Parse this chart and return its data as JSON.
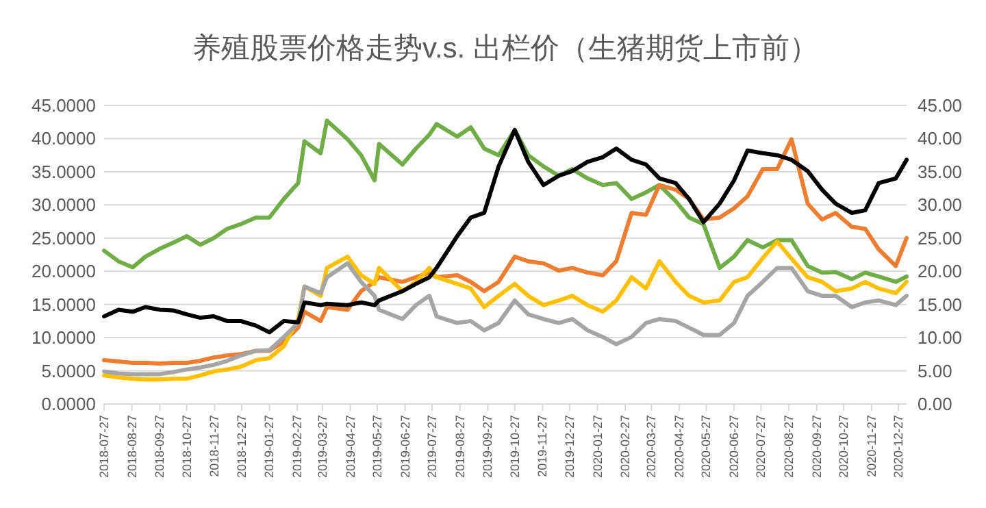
{
  "chart_data": {
    "type": "line",
    "title": "养殖股票价格走势v.s. 出栏价（生猪期货上市前）",
    "x": [
      "2018-07-27",
      "2018-08-12",
      "2018-08-28",
      "2018-09-11",
      "2018-09-27",
      "2018-10-12",
      "2018-10-27",
      "2018-11-11",
      "2018-11-26",
      "2018-12-11",
      "2018-12-26",
      "2019-01-12",
      "2019-01-27",
      "2019-02-12",
      "2019-02-28",
      "2019-03-07",
      "2019-03-25",
      "2019-04-01",
      "2019-04-24",
      "2019-05-09",
      "2019-05-24",
      "2019-05-29",
      "2019-06-24",
      "2019-07-09",
      "2019-07-24",
      "2019-08-01",
      "2019-08-24",
      "2019-09-08",
      "2019-09-23",
      "2019-10-09",
      "2019-10-27",
      "2019-11-11",
      "2019-11-28",
      "2019-12-15",
      "2019-12-30",
      "2020-01-16",
      "2020-02-02",
      "2020-02-17",
      "2020-03-05",
      "2020-03-21",
      "2020-04-05",
      "2020-04-23",
      "2020-05-08",
      "2020-05-24",
      "2020-06-11",
      "2020-06-27",
      "2020-07-12",
      "2020-07-29",
      "2020-08-14",
      "2020-08-30",
      "2020-09-17",
      "2020-10-03",
      "2020-10-18",
      "2020-11-05",
      "2020-11-20",
      "2020-12-05",
      "2020-12-24",
      "2021-01-05"
    ],
    "series": [
      {
        "color": "#70ad47",
        "values": [
          23.1,
          21.5,
          20.6,
          22.2,
          23.4,
          24.3,
          25.3,
          24.0,
          25.0,
          26.4,
          27.1,
          28.1,
          28.1,
          30.9,
          33.3,
          39.6,
          37.8,
          42.7,
          39.9,
          37.5,
          33.7,
          39.2,
          36.1,
          38.5,
          40.6,
          42.2,
          40.3,
          41.7,
          38.5,
          37.5,
          41.3,
          37.5,
          35.8,
          34.4,
          35.4,
          34.0,
          33.0,
          33.3,
          30.9,
          31.9,
          33.0,
          30.6,
          28.1,
          27.1,
          20.5,
          22.2,
          24.7,
          23.6,
          24.7,
          24.7,
          20.8,
          19.8,
          19.9,
          18.8,
          19.8,
          19.2,
          18.4,
          19.2
        ]
      },
      {
        "color": "#ed7d31",
        "values": [
          6.6,
          6.4,
          6.2,
          6.2,
          6.1,
          6.2,
          6.2,
          6.5,
          7.0,
          7.3,
          7.5,
          8.0,
          8.0,
          9.4,
          11.5,
          13.9,
          12.5,
          14.6,
          14.2,
          17.0,
          18.4,
          19.1,
          18.4,
          19.1,
          19.8,
          19.1,
          19.4,
          18.4,
          17.0,
          18.4,
          22.2,
          21.5,
          21.2,
          20.1,
          20.5,
          19.8,
          19.4,
          21.5,
          28.8,
          28.5,
          33.0,
          32.3,
          30.9,
          27.8,
          28.1,
          29.5,
          31.3,
          35.4,
          35.4,
          39.9,
          30.2,
          27.8,
          28.8,
          26.7,
          26.4,
          23.3,
          20.8,
          25.0
        ]
      },
      {
        "color": "#ffc000",
        "values": [
          4.3,
          4.0,
          3.8,
          3.7,
          3.7,
          3.8,
          3.8,
          4.3,
          4.9,
          5.2,
          5.6,
          6.6,
          6.9,
          8.7,
          12.8,
          17.7,
          16.3,
          20.5,
          22.2,
          19.4,
          18.1,
          20.5,
          17.0,
          18.4,
          20.5,
          19.1,
          18.1,
          17.4,
          14.6,
          16.3,
          18.1,
          16.3,
          14.9,
          15.6,
          16.3,
          14.9,
          13.9,
          15.6,
          19.1,
          17.4,
          21.5,
          18.4,
          16.3,
          15.3,
          15.6,
          18.4,
          19.1,
          22.0,
          24.5,
          21.9,
          19.1,
          18.4,
          17.0,
          17.4,
          18.4,
          17.4,
          16.7,
          18.4
        ]
      },
      {
        "color": "#a5a5a5",
        "values": [
          4.9,
          4.6,
          4.5,
          4.5,
          4.5,
          4.8,
          5.2,
          5.5,
          5.9,
          6.5,
          7.3,
          8.0,
          8.1,
          10.1,
          12.2,
          17.7,
          16.7,
          19.1,
          21.2,
          18.4,
          16.3,
          14.2,
          12.8,
          14.9,
          16.3,
          13.2,
          12.2,
          12.5,
          11.1,
          12.2,
          15.6,
          13.5,
          12.8,
          12.2,
          12.8,
          11.1,
          10.1,
          9.0,
          10.1,
          12.2,
          12.8,
          12.5,
          11.5,
          10.4,
          10.4,
          12.2,
          16.3,
          18.4,
          20.5,
          20.5,
          17.0,
          16.3,
          16.3,
          14.6,
          15.3,
          15.6,
          14.9,
          16.3
        ]
      },
      {
        "color": "#000000",
        "axis": "y2",
        "values": [
          13.2,
          14.2,
          13.9,
          14.6,
          14.2,
          14.1,
          13.5,
          13.0,
          13.2,
          12.5,
          12.5,
          11.8,
          10.8,
          12.5,
          12.3,
          15.3,
          14.9,
          15.1,
          14.9,
          15.3,
          14.9,
          15.6,
          17.0,
          18.1,
          19.1,
          20.5,
          25.3,
          28.1,
          28.8,
          35.8,
          41.3,
          36.5,
          33.0,
          34.4,
          35.1,
          36.5,
          37.2,
          38.5,
          36.8,
          36.1,
          34.0,
          33.3,
          30.9,
          27.4,
          30.2,
          33.7,
          38.2,
          37.8,
          37.5,
          36.8,
          35.1,
          32.3,
          30.2,
          28.8,
          29.2,
          33.3,
          34.0,
          36.8
        ]
      }
    ],
    "xlim": [
      "2018-07-27",
      "2021-01-05"
    ],
    "xticks": [
      "2018-07-27",
      "2018-08-27",
      "2018-09-27",
      "2018-10-27",
      "2018-11-27",
      "2018-12-27",
      "2019-01-27",
      "2019-02-27",
      "2019-03-27",
      "2019-04-27",
      "2019-05-27",
      "2019-06-27",
      "2019-07-27",
      "2019-08-27",
      "2019-09-27",
      "2019-10-27",
      "2019-11-27",
      "2019-12-27",
      "2020-01-27",
      "2020-02-27",
      "2020-03-27",
      "2020-04-27",
      "2020-05-27",
      "2020-06-27",
      "2020-07-27",
      "2020-08-27",
      "2020-09-27",
      "2020-10-27",
      "2020-11-27",
      "2020-12-27"
    ],
    "ylim": [
      0,
      45
    ],
    "yticks": [
      {
        "value": 0,
        "label": "0.0000"
      },
      {
        "value": 5,
        "label": "5.0000"
      },
      {
        "value": 10,
        "label": "10.0000"
      },
      {
        "value": 15,
        "label": "15.0000"
      },
      {
        "value": 20,
        "label": "20.0000"
      },
      {
        "value": 25,
        "label": "25.0000"
      },
      {
        "value": 30,
        "label": "30.0000"
      },
      {
        "value": 35,
        "label": "35.0000"
      },
      {
        "value": 40,
        "label": "40.0000"
      },
      {
        "value": 45,
        "label": "45.0000"
      }
    ],
    "y2lim": [
      0,
      45
    ],
    "y2ticks": [
      {
        "value": 0,
        "label": "0.00"
      },
      {
        "value": 5,
        "label": "5.00"
      },
      {
        "value": 10,
        "label": "10.00"
      },
      {
        "value": 15,
        "label": "15.00"
      },
      {
        "value": 20,
        "label": "20.00"
      },
      {
        "value": 25,
        "label": "25.00"
      },
      {
        "value": 30,
        "label": "30.00"
      },
      {
        "value": 35,
        "label": "35.00"
      },
      {
        "value": 40,
        "label": "40.00"
      },
      {
        "value": 45,
        "label": "45.00"
      }
    ],
    "grid": "y",
    "marker": "none",
    "line_style": "solid"
  }
}
